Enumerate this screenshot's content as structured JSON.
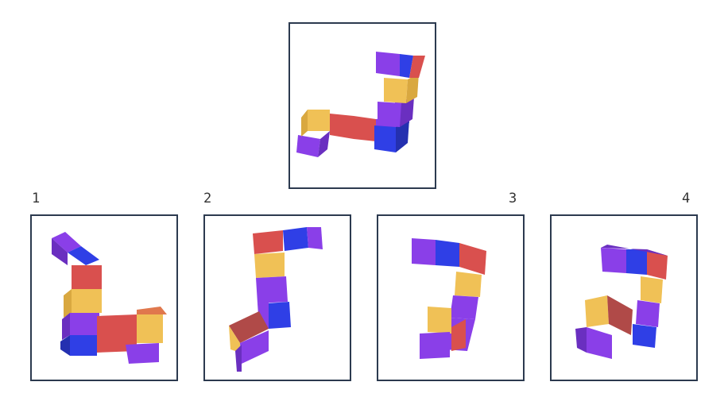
{
  "puzzle": {
    "options": [
      {
        "label": "1"
      },
      {
        "label": "2"
      },
      {
        "label": "3"
      },
      {
        "label": "4"
      }
    ]
  },
  "colors": {
    "frame": "#2c3a4f",
    "purple": "#8a3fe8",
    "blue": "#2f3fe6",
    "red": "#d9504e",
    "yellow": "#f0c156"
  }
}
